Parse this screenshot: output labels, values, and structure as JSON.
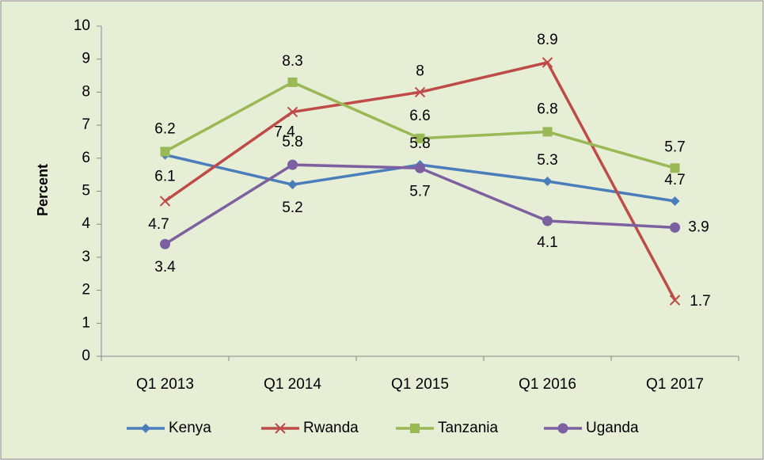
{
  "chart_data": {
    "type": "line",
    "y_label": "Percent",
    "categories": [
      "Q1 2013",
      "Q1 2014",
      "Q1 2015",
      "Q1 2016",
      "Q1 2017"
    ],
    "series": [
      {
        "name": "Kenya",
        "color": "#4a7ebb",
        "marker": "diamond",
        "values": [
          6.1,
          5.2,
          5.8,
          5.3,
          4.7
        ]
      },
      {
        "name": "Rwanda",
        "color": "#be4b48",
        "marker": "x",
        "values": [
          4.7,
          7.4,
          8,
          8.9,
          1.7
        ]
      },
      {
        "name": "Tanzania",
        "color": "#98b954",
        "marker": "square",
        "values": [
          6.2,
          8.3,
          6.6,
          6.8,
          5.7
        ]
      },
      {
        "name": "Uganda",
        "color": "#7d60a0",
        "marker": "circle",
        "values": [
          3.4,
          5.8,
          5.7,
          4.1,
          3.9
        ]
      }
    ],
    "ylim": [
      0,
      10
    ],
    "yticks": [
      0,
      1,
      2,
      3,
      4,
      5,
      6,
      7,
      8,
      9,
      10
    ],
    "grid": false,
    "legend": "bottom"
  }
}
